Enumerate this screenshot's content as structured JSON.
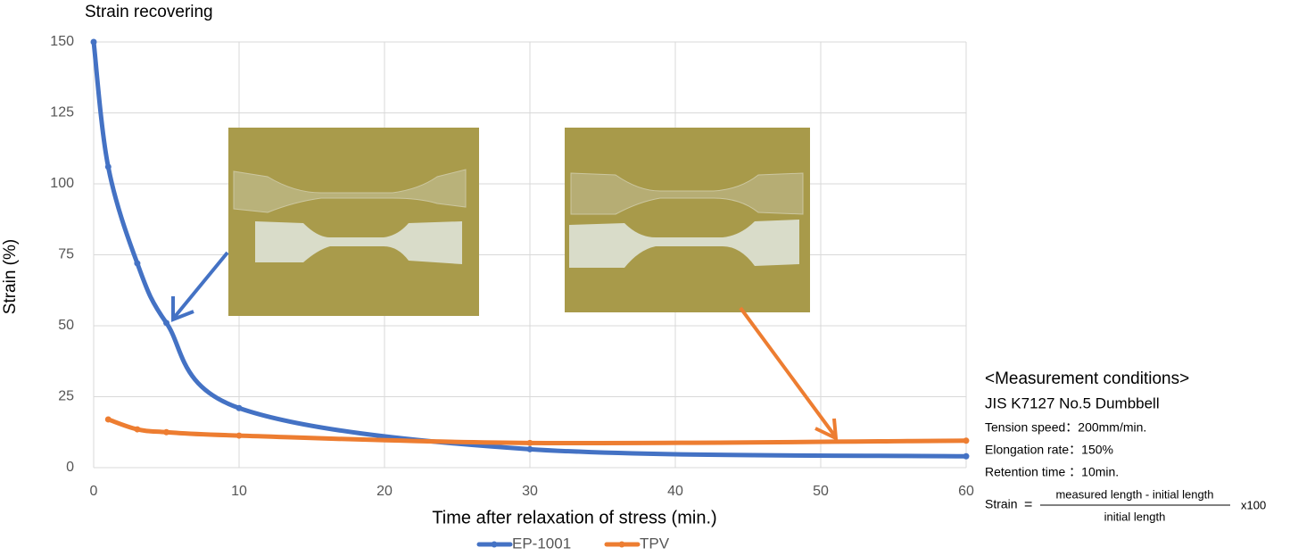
{
  "chart_data": {
    "type": "line",
    "title": "Strain recovering",
    "x_label": "Time after relaxation of stress (min.)",
    "y_label": "Strain (%)",
    "x": [
      0,
      1,
      3,
      5,
      10,
      30,
      60
    ],
    "series": [
      {
        "name": "EP-1001",
        "color": "#4472c4",
        "values": [
          150,
          106,
          72,
          51,
          21,
          6.5,
          4
        ]
      },
      {
        "name": "TPV",
        "color": "#ed7d31",
        "values": [
          null,
          17,
          13.5,
          12.5,
          11.3,
          8.7,
          9.5
        ]
      }
    ],
    "xlim": [
      0,
      60
    ],
    "xticks": [
      0,
      10,
      20,
      30,
      40,
      50,
      60
    ],
    "ylim": [
      0,
      150
    ],
    "yticks": [
      0,
      25,
      50,
      75,
      100,
      125,
      150
    ],
    "grid": true,
    "legend": "bottom",
    "conditions": {
      "heading": "<Measurement conditions>",
      "specimen": "JIS K7127 No.5 Dumbbell",
      "lines": [
        "Tension speed：200mm/min.",
        "Elongation rate：150%",
        "Retention time ：10min."
      ],
      "formula": {
        "lhs": "Strain",
        "eq": "=",
        "numerator": "measured length - initial length",
        "denominator": "initial length",
        "factor": "x100"
      }
    }
  }
}
